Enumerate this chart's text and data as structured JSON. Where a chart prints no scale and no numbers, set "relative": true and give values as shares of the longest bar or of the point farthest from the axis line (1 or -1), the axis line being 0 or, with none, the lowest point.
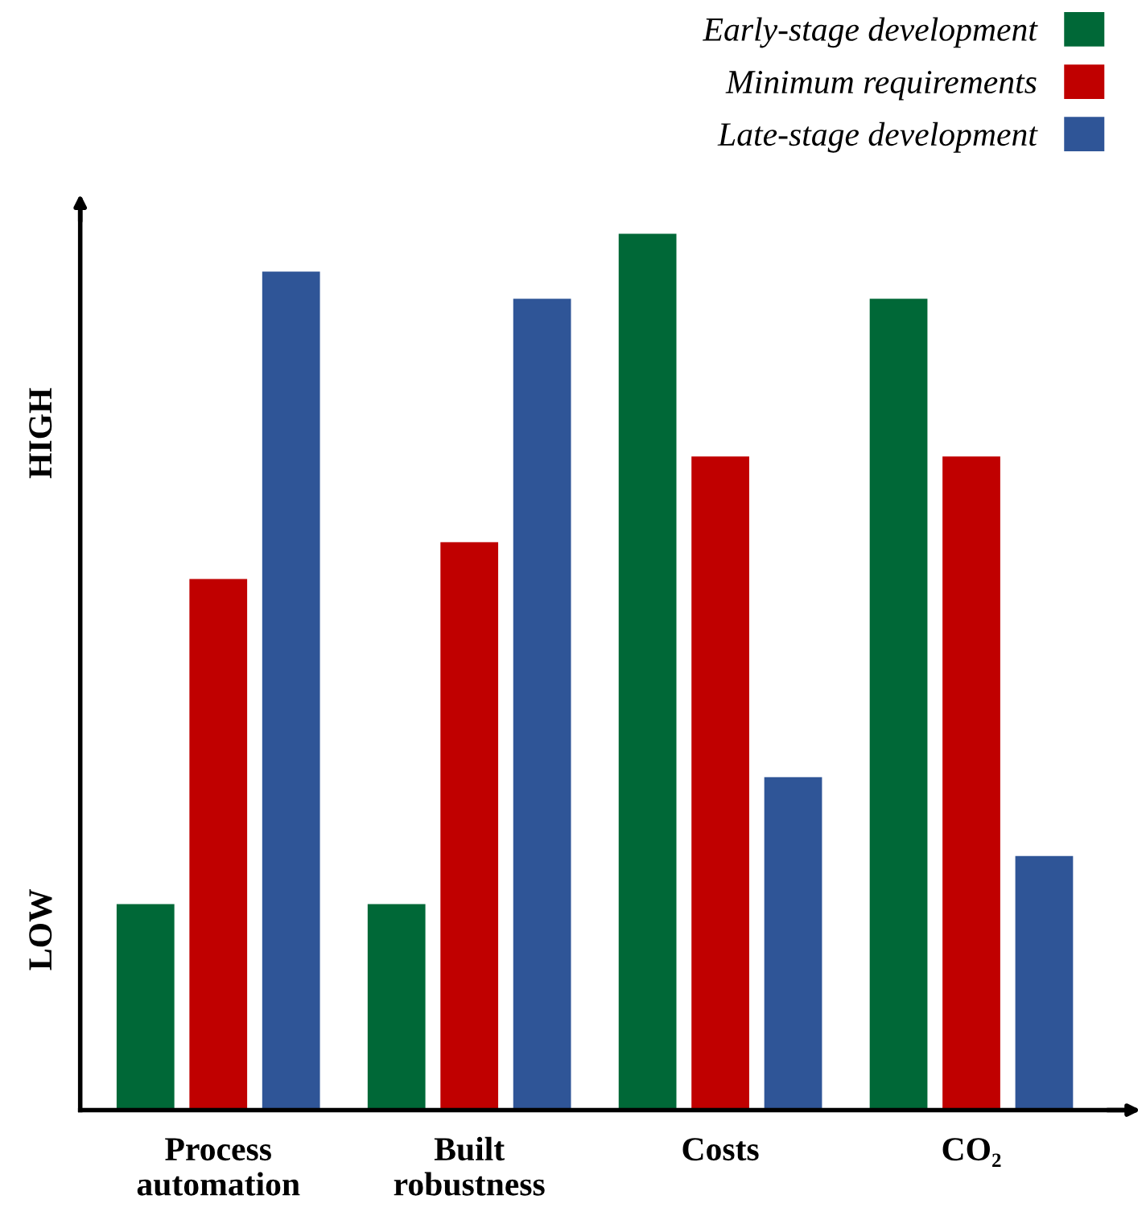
{
  "chart_data": {
    "type": "bar",
    "relative": true,
    "categories": [
      "Process\nautomation",
      "Built\nrobustness",
      "Costs",
      "CO₂"
    ],
    "series": [
      {
        "name": "Early-stage development",
        "color": "#006837",
        "values": [
          0.235,
          0.235,
          1,
          0.926
        ]
      },
      {
        "name": "Minimum requirements",
        "color": "#c00000",
        "values": [
          0.606,
          0.648,
          0.746,
          0.746
        ]
      },
      {
        "name": "Late-stage development",
        "color": "#2f5597",
        "values": [
          0.957,
          0.926,
          0.38,
          0.29
        ]
      }
    ],
    "annotations": [
      "LOW",
      "HIGH"
    ],
    "legend": "top right",
    "grid": false
  }
}
